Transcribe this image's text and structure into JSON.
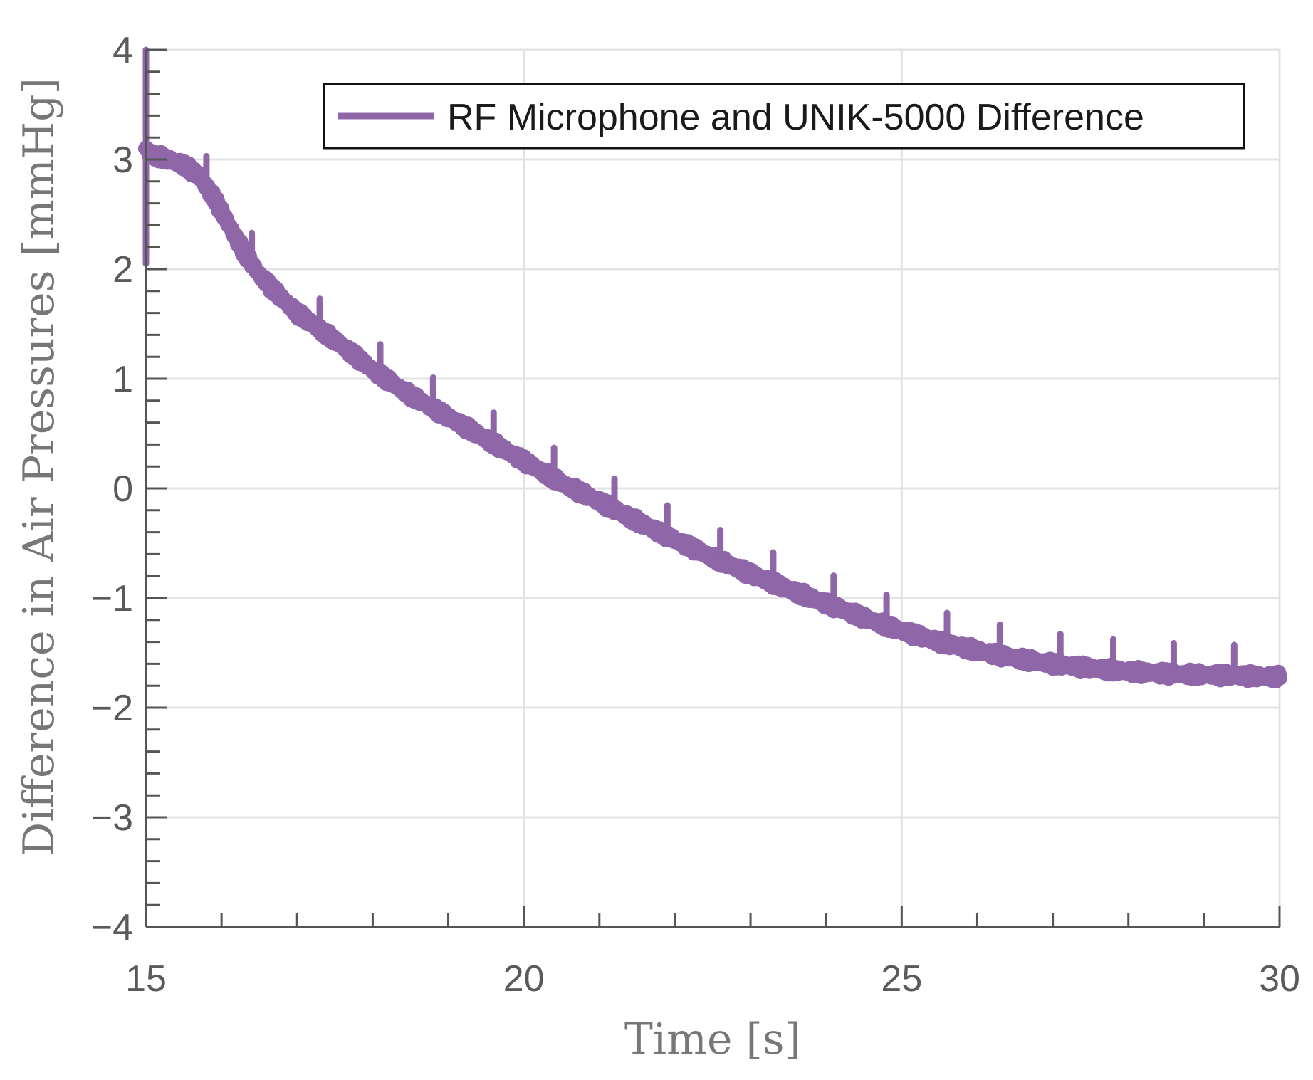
{
  "chart_data": {
    "type": "line",
    "title": "",
    "xlabel": "Time [s]",
    "ylabel": "Difference in Air Pressures [mmHg]",
    "xlim": [
      15,
      30
    ],
    "ylim": [
      -4,
      4
    ],
    "x_ticks": [
      15,
      20,
      25,
      30
    ],
    "x_tick_labels": [
      "15",
      "20",
      "25",
      "30"
    ],
    "x_minor_step": 1,
    "y_ticks": [
      4,
      3,
      2,
      1,
      0,
      -1,
      -2,
      -3,
      -4
    ],
    "y_tick_labels": [
      "4",
      "3",
      "2",
      "1",
      "0",
      "−1",
      "−2",
      "−3",
      "−4"
    ],
    "y_minor_step": 0.2,
    "grid": true,
    "legend_position": "top-right",
    "colors": {
      "series": "#8f67a8",
      "grid": "#e3e3e3",
      "axis": "#555555",
      "legend_border": "#111111"
    },
    "series": [
      {
        "name": "RF Microphone and UNIK-5000 Difference",
        "x": [
          15.0,
          15.05,
          15.3,
          15.5,
          15.7,
          15.9,
          16.1,
          16.3,
          16.5,
          16.7,
          17.0,
          17.3,
          17.6,
          18.0,
          18.5,
          19.0,
          19.5,
          20.0,
          20.5,
          21.0,
          21.5,
          22.0,
          22.5,
          23.0,
          23.5,
          24.0,
          24.5,
          25.0,
          25.5,
          26.0,
          26.5,
          27.0,
          27.5,
          28.0,
          28.5,
          29.0,
          29.5,
          30.0
        ],
        "values": [
          3.1,
          3.05,
          3.0,
          2.95,
          2.85,
          2.65,
          2.4,
          2.15,
          1.95,
          1.8,
          1.6,
          1.45,
          1.3,
          1.08,
          0.85,
          0.65,
          0.45,
          0.25,
          0.05,
          -0.12,
          -0.3,
          -0.47,
          -0.63,
          -0.78,
          -0.92,
          -1.05,
          -1.18,
          -1.3,
          -1.4,
          -1.48,
          -1.55,
          -1.6,
          -1.64,
          -1.67,
          -1.69,
          -1.7,
          -1.71,
          -1.72
        ],
        "spikes_x": [
          15.0,
          15.8,
          16.4,
          17.3,
          18.1,
          18.8,
          19.6,
          20.4,
          21.2,
          21.9,
          22.6,
          23.3,
          24.1,
          24.8,
          25.6,
          26.3,
          27.1,
          27.8,
          28.6,
          29.4
        ],
        "band_thickness": 0.12
      }
    ]
  }
}
